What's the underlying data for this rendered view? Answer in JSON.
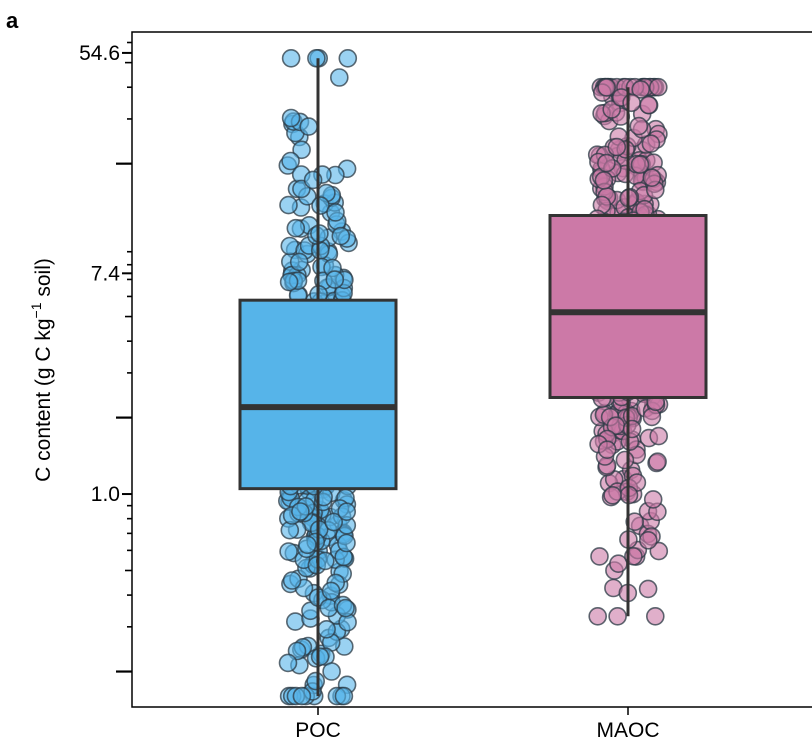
{
  "chart_data": {
    "type": "box",
    "panel_label": "a",
    "title": "",
    "xlabel": "",
    "ylabel": {
      "prefix": "C content (g C kg",
      "superscript": "−1",
      "suffix": " soil)"
    },
    "y_scale": "log",
    "ylim": [
      0.145,
      66
    ],
    "yticks": [
      1.0,
      7.4,
      54.6
    ],
    "ytick_labels": [
      "1.0",
      "7.4",
      "54.6"
    ],
    "categories": [
      "POC",
      "MAOC"
    ],
    "boxes": [
      {
        "name": "POC",
        "whisker_low": 0.16,
        "q1": 1.05,
        "median": 2.2,
        "q3": 5.8,
        "whisker_high": 52
      },
      {
        "name": "MAOC",
        "whisker_low": 0.33,
        "q1": 2.4,
        "median": 5.2,
        "q3": 12.5,
        "whisker_high": 40
      }
    ],
    "points_per_group": 420,
    "colors": {
      "POC": "#56B4E9",
      "MAOC": "#CC79A7",
      "point_edge": "#2b3a44",
      "box_edge": "#333333"
    },
    "grid": false,
    "legend": "none"
  }
}
